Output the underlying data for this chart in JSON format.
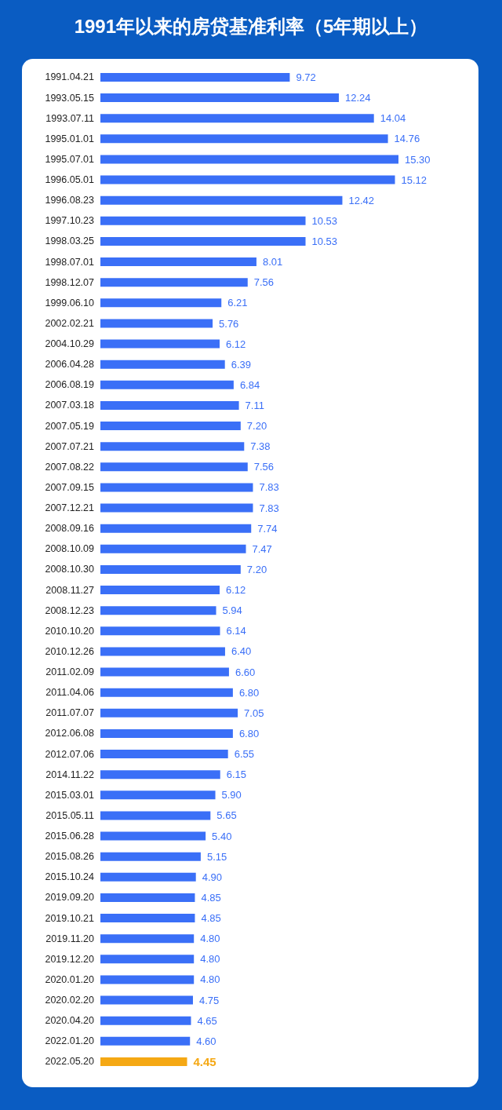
{
  "chart_data": {
    "type": "bar",
    "orientation": "horizontal",
    "title": "1991年以来的房贷基准利率（5年期以上）",
    "categories": [
      "1991.04.21",
      "1993.05.15",
      "1993.07.11",
      "1995.01.01",
      "1995.07.01",
      "1996.05.01",
      "1996.08.23",
      "1997.10.23",
      "1998.03.25",
      "1998.07.01",
      "1998.12.07",
      "1999.06.10",
      "2002.02.21",
      "2004.10.29",
      "2006.04.28",
      "2006.08.19",
      "2007.03.18",
      "2007.05.19",
      "2007.07.21",
      "2007.08.22",
      "2007.09.15",
      "2007.12.21",
      "2008.09.16",
      "2008.10.09",
      "2008.10.30",
      "2008.11.27",
      "2008.12.23",
      "2010.10.20",
      "2010.12.26",
      "2011.02.09",
      "2011.04.06",
      "2011.07.07",
      "2012.06.08",
      "2012.07.06",
      "2014.11.22",
      "2015.03.01",
      "2015.05.11",
      "2015.06.28",
      "2015.08.26",
      "2015.10.24",
      "2019.09.20",
      "2019.10.21",
      "2019.11.20",
      "2019.12.20",
      "2020.01.20",
      "2020.02.20",
      "2020.04.20",
      "2022.01.20",
      "2022.05.20"
    ],
    "values": [
      9.72,
      12.24,
      14.04,
      14.76,
      15.3,
      15.12,
      12.42,
      10.53,
      10.53,
      8.01,
      7.56,
      6.21,
      5.76,
      6.12,
      6.39,
      6.84,
      7.11,
      7.2,
      7.38,
      7.56,
      7.83,
      7.83,
      7.74,
      7.47,
      7.2,
      6.12,
      5.94,
      6.14,
      6.4,
      6.6,
      6.8,
      7.05,
      6.8,
      6.55,
      6.15,
      5.9,
      5.65,
      5.4,
      5.15,
      4.9,
      4.85,
      4.85,
      4.8,
      4.8,
      4.8,
      4.75,
      4.65,
      4.6,
      4.45
    ],
    "value_labels": [
      "9.72",
      "12.24",
      "14.04",
      "14.76",
      "15.30",
      "15.12",
      "12.42",
      "10.53",
      "10.53",
      "8.01",
      "7.56",
      "6.21",
      "5.76",
      "6.12",
      "6.39",
      "6.84",
      "7.11",
      "7.20",
      "7.38",
      "7.56",
      "7.83",
      "7.83",
      "7.74",
      "7.47",
      "7.20",
      "6.12",
      "5.94",
      "6.14",
      "6.40",
      "6.60",
      "6.80",
      "7.05",
      "6.80",
      "6.55",
      "6.15",
      "5.90",
      "5.65",
      "5.40",
      "5.15",
      "4.90",
      "4.85",
      "4.85",
      "4.80",
      "4.80",
      "4.80",
      "4.75",
      "4.65",
      "4.60",
      "4.45"
    ],
    "colors": [
      "#3a6ff7",
      "#3a6ff7",
      "#3a6ff7",
      "#3a6ff7",
      "#3a6ff7",
      "#3a6ff7",
      "#3a6ff7",
      "#3a6ff7",
      "#3a6ff7",
      "#3a6ff7",
      "#3a6ff7",
      "#3a6ff7",
      "#3a6ff7",
      "#3a6ff7",
      "#3a6ff7",
      "#3a6ff7",
      "#3a6ff7",
      "#3a6ff7",
      "#3a6ff7",
      "#3a6ff7",
      "#3a6ff7",
      "#3a6ff7",
      "#3a6ff7",
      "#3a6ff7",
      "#3a6ff7",
      "#3a6ff7",
      "#3a6ff7",
      "#3a6ff7",
      "#3a6ff7",
      "#3a6ff7",
      "#3a6ff7",
      "#3a6ff7",
      "#3a6ff7",
      "#3a6ff7",
      "#3a6ff7",
      "#3a6ff7",
      "#3a6ff7",
      "#3a6ff7",
      "#3a6ff7",
      "#3a6ff7",
      "#3a6ff7",
      "#3a6ff7",
      "#3a6ff7",
      "#3a6ff7",
      "#3a6ff7",
      "#3a6ff7",
      "#3a6ff7",
      "#3a6ff7",
      "#f5a814"
    ],
    "tick_labels": "y",
    "grid": false,
    "legend": false
  }
}
